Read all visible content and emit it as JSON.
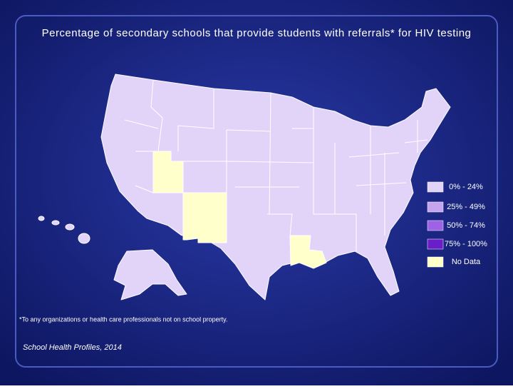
{
  "title": "Percentage of secondary schools that provide students with referrals* for HIV testing",
  "legend": [
    {
      "label": "0% - 24%",
      "color": "#e2d4f9"
    },
    {
      "label": "25% - 49%",
      "color": "#c6a4f0"
    },
    {
      "label": "50% - 74%",
      "color": "#9e62e6"
    },
    {
      "label": "75% - 100%",
      "color": "#6a1ec9"
    },
    {
      "label": "No Data",
      "color": "#ffffcc"
    }
  ],
  "footnote": "*To any organizations or health care professionals not on school property.",
  "source": "School Health Profiles, 2014"
}
